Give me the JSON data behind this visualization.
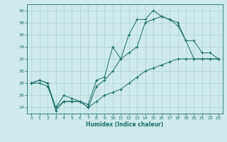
{
  "xlabel": "Humidex (Indice chaleur)",
  "ylabel": "",
  "background_color": "#ceeaea",
  "grid_color": "#aed4d4",
  "line_color": "#1a6e6a",
  "xlim": [
    -0.5,
    23.5
  ],
  "ylim": [
    23,
    41
  ],
  "yticks": [
    24,
    26,
    28,
    30,
    32,
    34,
    36,
    38,
    40
  ],
  "xticks": [
    0,
    1,
    2,
    3,
    4,
    5,
    6,
    7,
    8,
    9,
    10,
    11,
    12,
    13,
    14,
    15,
    16,
    17,
    18,
    19,
    20,
    21,
    22,
    23
  ],
  "series": [
    {
      "x": [
        0,
        1,
        2,
        3,
        4,
        5,
        6,
        7,
        8,
        9,
        10,
        11,
        12,
        13,
        14,
        15,
        16,
        17,
        18,
        19,
        20,
        21,
        22,
        23
      ],
      "y": [
        28,
        28.5,
        28,
        24,
        26,
        25.5,
        25,
        24.5,
        28.5,
        29,
        34,
        32,
        36,
        38.5,
        38.5,
        40,
        39,
        38.5,
        37.5,
        35,
        32,
        32,
        32,
        32
      ]
    },
    {
      "x": [
        0,
        1,
        2,
        3,
        4,
        5,
        6,
        7,
        8,
        9,
        10,
        11,
        12,
        13,
        14,
        15,
        16,
        17,
        18,
        19,
        20,
        21,
        22,
        23
      ],
      "y": [
        28,
        28.5,
        28,
        23.5,
        25,
        25,
        25,
        24,
        27.5,
        28.5,
        30,
        32,
        33,
        34,
        38,
        38.5,
        39,
        38.5,
        38,
        35,
        35,
        33,
        33,
        32
      ]
    },
    {
      "x": [
        0,
        1,
        2,
        3,
        4,
        5,
        6,
        7,
        8,
        9,
        10,
        11,
        12,
        13,
        14,
        15,
        16,
        17,
        18,
        19,
        20,
        21,
        22,
        23
      ],
      "y": [
        28,
        28,
        27.5,
        24,
        25,
        25,
        25,
        24,
        25,
        26,
        26.5,
        27,
        28,
        29,
        30,
        30.5,
        31,
        31.5,
        32,
        32,
        32,
        32,
        32,
        32
      ]
    }
  ]
}
